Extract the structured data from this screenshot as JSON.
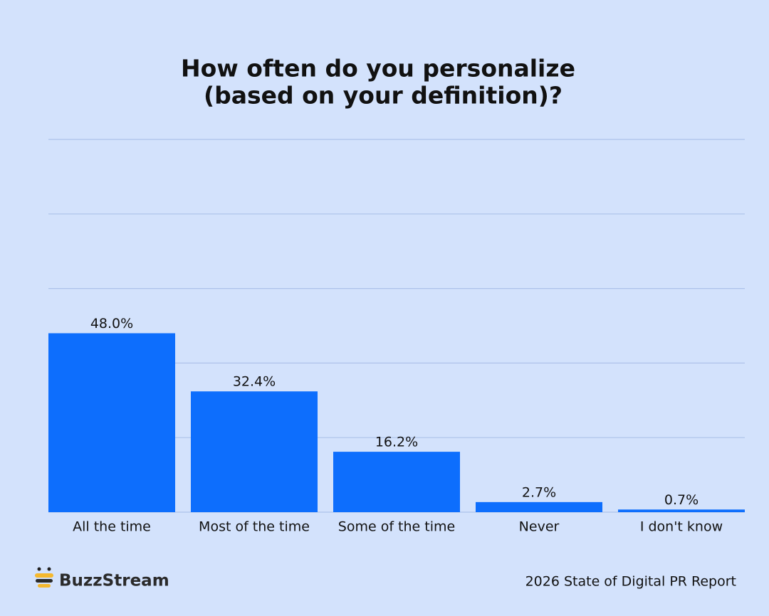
{
  "chart_data": {
    "type": "bar",
    "title": [
      "How often do you personalize",
      "(based on your definition)?"
    ],
    "categories": [
      "All the time",
      "Most of the time",
      "Some of the time",
      "Never",
      "I don't know"
    ],
    "values": [
      48.0,
      32.4,
      16.2,
      2.7,
      0.7
    ],
    "value_labels": [
      "48.0%",
      "32.4%",
      "16.2%",
      "2.7%",
      "0.7%"
    ],
    "color": "#0d6efd",
    "ylim": [
      0,
      100
    ],
    "yticks": [
      0,
      20,
      40,
      60,
      80,
      100
    ],
    "grid": true,
    "brand": "BuzzStream",
    "source": "2026 State of Digital PR Report"
  }
}
